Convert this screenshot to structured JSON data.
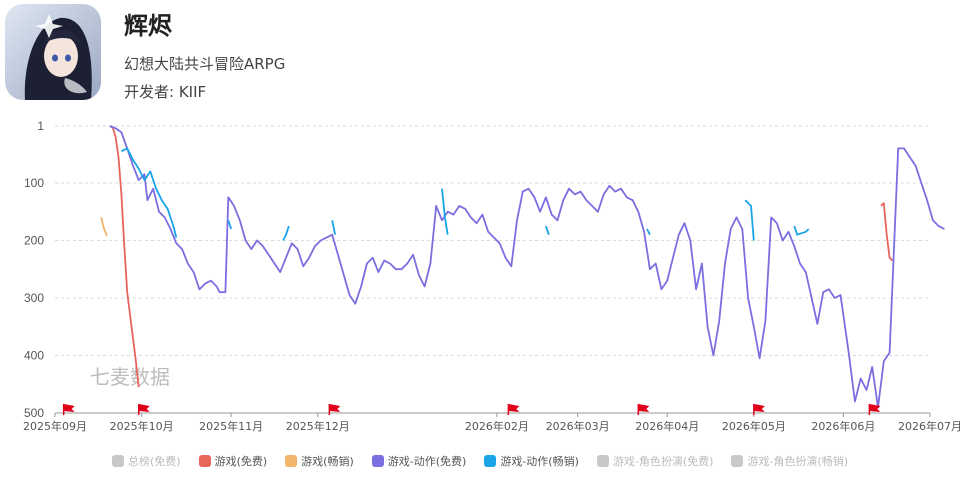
{
  "app": {
    "name": "辉烬",
    "subtitle": "幻想大陆共斗冒险ARPG",
    "developer_label": "开发者: KIIF"
  },
  "watermark": "七麦数据",
  "colors": {
    "grid": "#d9d9d9",
    "axis_text": "#555555",
    "flag": "#e0001b"
  },
  "chart_data": {
    "type": "line",
    "title": "",
    "xlabel": "",
    "ylabel": "",
    "y_axis": {
      "reversed": true,
      "range": [
        1,
        500
      ],
      "ticks": [
        "1",
        "100",
        "200",
        "300",
        "400",
        "500"
      ],
      "tick_values": [
        1,
        100,
        200,
        300,
        400,
        500
      ]
    },
    "x_axis": {
      "range": [
        "2025-09-01",
        "2026-07-01"
      ],
      "ticks": [
        "2025年09月",
        "2025年10月",
        "2025年11月",
        "2025年12月",
        "2026年02月",
        "2026年03月",
        "2026年04月",
        "2026年05月",
        "2026年06月",
        "2026年07月"
      ],
      "tick_dates": [
        "2025-09-01",
        "2025-10-01",
        "2025-11-01",
        "2025-12-01",
        "2026-02-01",
        "2026-03-01",
        "2026-04-01",
        "2026-05-01",
        "2026-06-01",
        "2026-07-01"
      ]
    },
    "grid": true,
    "legend_position": "bottom",
    "event_flags": [
      "2025-09-04",
      "2025-09-30",
      "2025-12-05",
      "2026-02-05",
      "2026-03-22",
      "2026-05-01",
      "2026-06-10"
    ],
    "series": [
      {
        "name": "总榜(免费)",
        "color": "#c8c8c8",
        "active": false,
        "points": []
      },
      {
        "name": "游戏(免费)",
        "color": "#e8655c",
        "active": true,
        "points": [
          [
            "2025-09-20",
            1
          ],
          [
            "2025-09-21",
            4
          ],
          [
            "2025-09-22",
            20
          ],
          [
            "2025-09-23",
            55
          ],
          [
            "2025-09-24",
            120
          ],
          [
            "2025-09-25",
            210
          ],
          [
            "2025-09-26",
            290
          ],
          [
            "2025-09-27",
            330
          ],
          [
            "2025-09-28",
            370
          ],
          [
            "2025-09-29",
            410
          ],
          [
            "2025-09-30",
            455
          ],
          [
            "2026-06-14",
            140
          ],
          [
            "2026-06-15",
            135
          ],
          [
            "2026-06-16",
            190
          ],
          [
            "2026-06-17",
            230
          ],
          [
            "2026-06-18",
            235
          ]
        ]
      },
      {
        "name": "游戏(畅销)",
        "color": "#f2b56b",
        "active": true,
        "points": [
          [
            "2025-09-17",
            160
          ],
          [
            "2025-09-18",
            180
          ],
          [
            "2025-09-19",
            192
          ]
        ]
      },
      {
        "name": "游戏-动作(免费)",
        "color": "#7b6ee0",
        "active": true,
        "points": [
          [
            "2025-09-20",
            1
          ],
          [
            "2025-09-22",
            5
          ],
          [
            "2025-09-24",
            12
          ],
          [
            "2025-09-26",
            40
          ],
          [
            "2025-09-28",
            70
          ],
          [
            "2025-09-30",
            95
          ],
          [
            "2025-10-02",
            85
          ],
          [
            "2025-10-03",
            130
          ],
          [
            "2025-10-05",
            110
          ],
          [
            "2025-10-07",
            150
          ],
          [
            "2025-10-09",
            160
          ],
          [
            "2025-10-11",
            180
          ],
          [
            "2025-10-13",
            205
          ],
          [
            "2025-10-15",
            215
          ],
          [
            "2025-10-17",
            240
          ],
          [
            "2025-10-19",
            255
          ],
          [
            "2025-10-21",
            285
          ],
          [
            "2025-10-23",
            275
          ],
          [
            "2025-10-25",
            270
          ],
          [
            "2025-10-27",
            280
          ],
          [
            "2025-10-28",
            290
          ],
          [
            "2025-10-30",
            290
          ],
          [
            "2025-10-31",
            125
          ],
          [
            "2025-11-02",
            140
          ],
          [
            "2025-11-04",
            165
          ],
          [
            "2025-11-06",
            200
          ],
          [
            "2025-11-08",
            215
          ],
          [
            "2025-11-10",
            200
          ],
          [
            "2025-11-12",
            210
          ],
          [
            "2025-11-14",
            225
          ],
          [
            "2025-11-16",
            240
          ],
          [
            "2025-11-18",
            255
          ],
          [
            "2025-11-20",
            230
          ],
          [
            "2025-11-22",
            205
          ],
          [
            "2025-11-24",
            215
          ],
          [
            "2025-11-26",
            245
          ],
          [
            "2025-11-28",
            230
          ],
          [
            "2025-11-30",
            210
          ],
          [
            "2025-12-02",
            200
          ],
          [
            "2025-12-04",
            195
          ],
          [
            "2025-12-06",
            190
          ],
          [
            "2025-12-08",
            225
          ],
          [
            "2025-12-10",
            260
          ],
          [
            "2025-12-12",
            295
          ],
          [
            "2025-12-14",
            310
          ],
          [
            "2025-12-16",
            280
          ],
          [
            "2025-12-18",
            240
          ],
          [
            "2025-12-20",
            230
          ],
          [
            "2025-12-22",
            255
          ],
          [
            "2025-12-24",
            235
          ],
          [
            "2025-12-26",
            240
          ],
          [
            "2025-12-28",
            250
          ],
          [
            "2025-12-30",
            250
          ],
          [
            "2026-01-01",
            240
          ],
          [
            "2026-01-03",
            225
          ],
          [
            "2026-01-05",
            260
          ],
          [
            "2026-01-07",
            280
          ],
          [
            "2026-01-09",
            240
          ],
          [
            "2026-01-11",
            140
          ],
          [
            "2026-01-13",
            165
          ],
          [
            "2026-01-15",
            150
          ],
          [
            "2026-01-17",
            155
          ],
          [
            "2026-01-19",
            140
          ],
          [
            "2026-01-21",
            145
          ],
          [
            "2026-01-23",
            160
          ],
          [
            "2026-01-25",
            170
          ],
          [
            "2026-01-27",
            155
          ],
          [
            "2026-01-29",
            185
          ],
          [
            "2026-01-31",
            195
          ],
          [
            "2026-02-02",
            205
          ],
          [
            "2026-02-04",
            230
          ],
          [
            "2026-02-06",
            245
          ],
          [
            "2026-02-08",
            165
          ],
          [
            "2026-02-10",
            115
          ],
          [
            "2026-02-12",
            110
          ],
          [
            "2026-02-14",
            125
          ],
          [
            "2026-02-16",
            150
          ],
          [
            "2026-02-18",
            125
          ],
          [
            "2026-02-20",
            155
          ],
          [
            "2026-02-22",
            165
          ],
          [
            "2026-02-24",
            130
          ],
          [
            "2026-02-26",
            110
          ],
          [
            "2026-02-28",
            120
          ],
          [
            "2026-03-02",
            115
          ],
          [
            "2026-03-04",
            130
          ],
          [
            "2026-03-06",
            140
          ],
          [
            "2026-03-08",
            150
          ],
          [
            "2026-03-10",
            120
          ],
          [
            "2026-03-12",
            105
          ],
          [
            "2026-03-14",
            115
          ],
          [
            "2026-03-16",
            110
          ],
          [
            "2026-03-18",
            125
          ],
          [
            "2026-03-20",
            130
          ],
          [
            "2026-03-22",
            150
          ],
          [
            "2026-03-24",
            185
          ],
          [
            "2026-03-26",
            250
          ],
          [
            "2026-03-28",
            240
          ],
          [
            "2026-03-30",
            285
          ],
          [
            "2026-04-01",
            270
          ],
          [
            "2026-04-03",
            230
          ],
          [
            "2026-04-05",
            190
          ],
          [
            "2026-04-07",
            170
          ],
          [
            "2026-04-09",
            200
          ],
          [
            "2026-04-11",
            285
          ],
          [
            "2026-04-13",
            240
          ],
          [
            "2026-04-15",
            350
          ],
          [
            "2026-04-17",
            400
          ],
          [
            "2026-04-19",
            340
          ],
          [
            "2026-04-21",
            240
          ],
          [
            "2026-04-23",
            180
          ],
          [
            "2026-04-25",
            160
          ],
          [
            "2026-04-27",
            180
          ],
          [
            "2026-04-29",
            300
          ],
          [
            "2026-05-01",
            350
          ],
          [
            "2026-05-03",
            405
          ],
          [
            "2026-05-05",
            340
          ],
          [
            "2026-05-07",
            160
          ],
          [
            "2026-05-09",
            170
          ],
          [
            "2026-05-11",
            200
          ],
          [
            "2026-05-13",
            185
          ],
          [
            "2026-05-15",
            210
          ],
          [
            "2026-05-17",
            240
          ],
          [
            "2026-05-19",
            255
          ],
          [
            "2026-05-21",
            300
          ],
          [
            "2026-05-23",
            345
          ],
          [
            "2026-05-25",
            290
          ],
          [
            "2026-05-27",
            285
          ],
          [
            "2026-05-29",
            300
          ],
          [
            "2026-05-31",
            295
          ],
          [
            "2026-06-01",
            330
          ],
          [
            "2026-06-03",
            400
          ],
          [
            "2026-06-05",
            480
          ],
          [
            "2026-06-07",
            440
          ],
          [
            "2026-06-09",
            460
          ],
          [
            "2026-06-11",
            420
          ],
          [
            "2026-06-13",
            490
          ],
          [
            "2026-06-15",
            410
          ],
          [
            "2026-06-17",
            395
          ],
          [
            "2026-06-20",
            40
          ],
          [
            "2026-06-22",
            40
          ],
          [
            "2026-06-24",
            55
          ],
          [
            "2026-06-26",
            70
          ],
          [
            "2026-06-28",
            100
          ],
          [
            "2026-06-30",
            130
          ],
          [
            "2026-07-02",
            165
          ],
          [
            "2026-07-04",
            175
          ],
          [
            "2026-07-06",
            180
          ]
        ]
      },
      {
        "name": "游戏-动作(畅销)",
        "color": "#1aa4e8",
        "active": true,
        "points": [
          [
            "2025-09-24",
            45
          ],
          [
            "2025-09-26",
            40
          ],
          [
            "2025-09-28",
            60
          ],
          [
            "2025-09-30",
            75
          ],
          [
            "2025-10-02",
            95
          ],
          [
            "2025-10-04",
            80
          ],
          [
            "2025-10-06",
            110
          ],
          [
            "2025-10-08",
            130
          ],
          [
            "2025-10-10",
            145
          ],
          [
            "2025-10-12",
            175
          ],
          [
            "2025-10-13",
            195
          ],
          [
            "2025-10-31",
            165
          ],
          [
            "2025-11-01",
            180
          ],
          [
            "2025-11-19",
            200
          ],
          [
            "2025-11-20",
            190
          ],
          [
            "2025-11-21",
            175
          ],
          [
            "2025-12-06",
            165
          ],
          [
            "2025-12-07",
            190
          ],
          [
            "2026-01-13",
            110
          ],
          [
            "2026-01-14",
            160
          ],
          [
            "2026-01-15",
            190
          ],
          [
            "2026-02-18",
            175
          ],
          [
            "2026-02-19",
            190
          ],
          [
            "2026-03-25",
            180
          ],
          [
            "2026-03-26",
            190
          ],
          [
            "2026-04-28",
            130
          ],
          [
            "2026-04-30",
            140
          ],
          [
            "2026-05-01",
            200
          ],
          [
            "2026-05-15",
            175
          ],
          [
            "2026-05-16",
            190
          ],
          [
            "2026-05-19",
            185
          ],
          [
            "2026-05-20",
            180
          ]
        ]
      },
      {
        "name": "游戏-角色扮演(免费)",
        "color": "#c8c8c8",
        "active": false,
        "points": []
      },
      {
        "name": "游戏-角色扮演(畅销)",
        "color": "#c8c8c8",
        "active": false,
        "points": []
      }
    ]
  }
}
